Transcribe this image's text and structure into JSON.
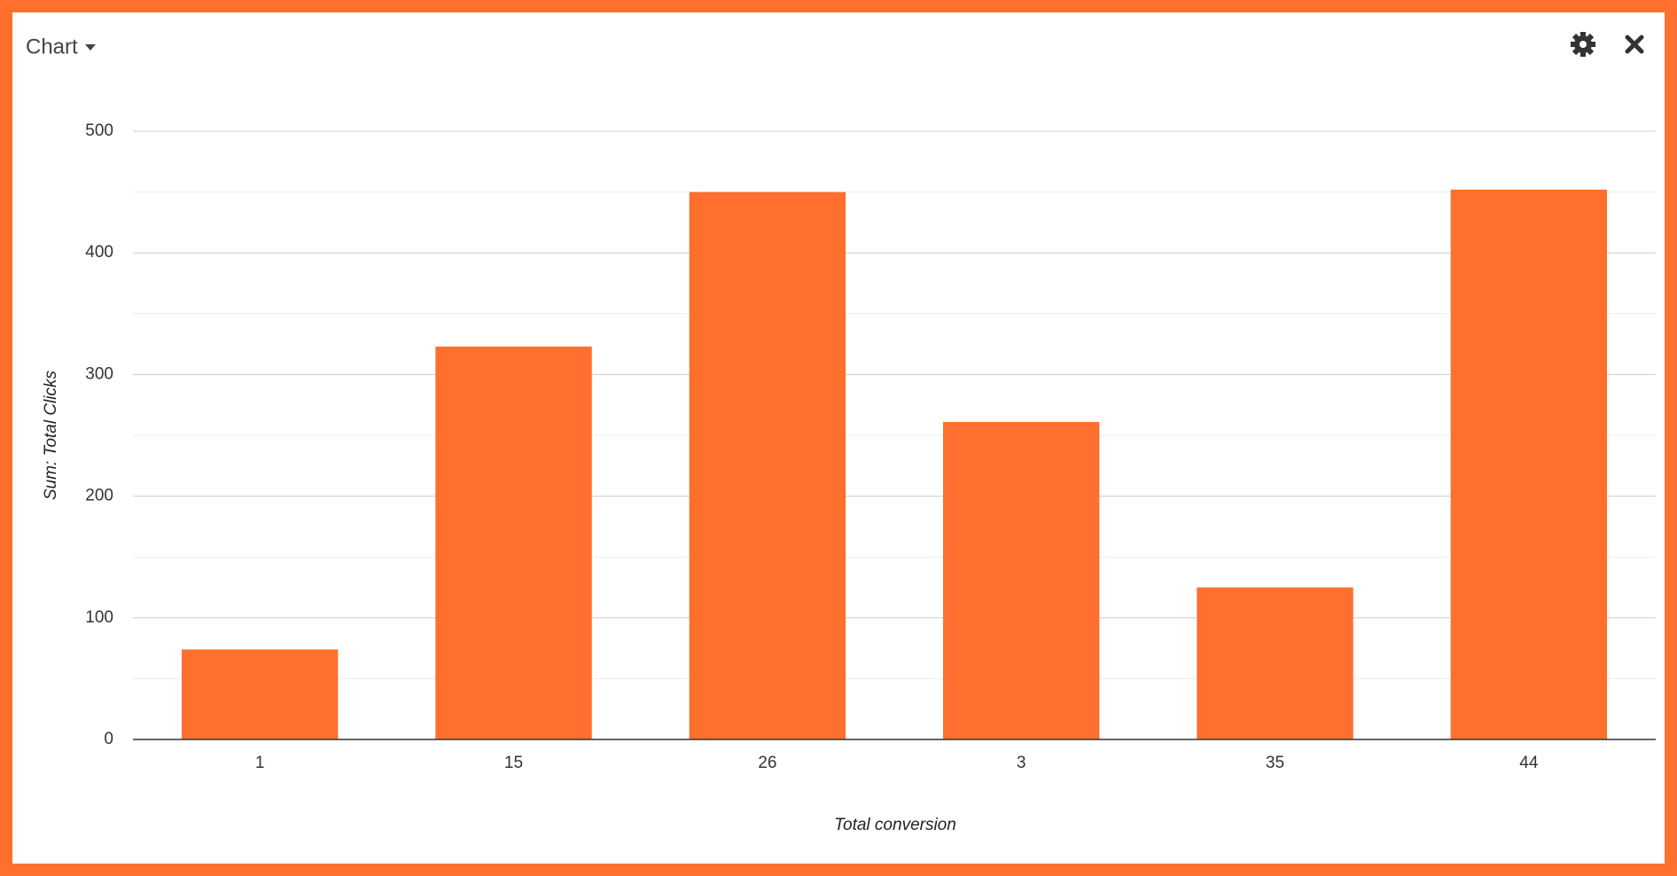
{
  "header": {
    "menu_label": "Chart"
  },
  "chart_data": {
    "type": "bar",
    "x_label": "Total conversion",
    "y_label": "Sum: Total Clicks",
    "categories": [
      "1",
      "15",
      "26",
      "3",
      "35",
      "44"
    ],
    "values": [
      74,
      323,
      450,
      261,
      125,
      452
    ],
    "color": "#ff6f2d",
    "ylim": [
      0,
      500
    ],
    "yticks": [
      0,
      100,
      200,
      300,
      400,
      500
    ],
    "minor_yticks": [
      50,
      150,
      250,
      350,
      450
    ],
    "grid": true
  }
}
